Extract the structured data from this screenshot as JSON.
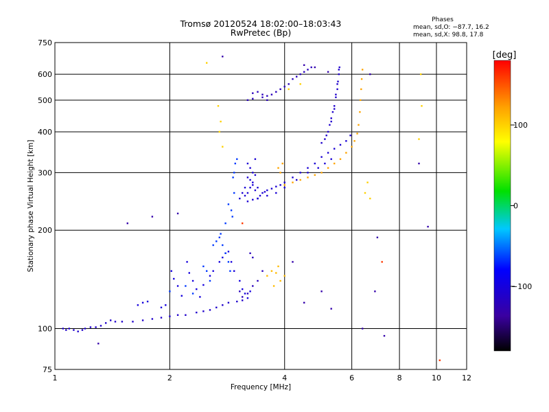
{
  "chart_data": {
    "type": "scatter",
    "title": "Tromsø 20120524 18:02:00–18:03:43",
    "subtitle": "RwPretec (Bp)",
    "xlabel": "Frequency [MHz]",
    "ylabel": "Stationary phase Virtual Height [km]",
    "x_scale": "log",
    "y_scale": "log",
    "xlim": [
      1,
      12
    ],
    "ylim": [
      75,
      750
    ],
    "x_ticks": [
      1,
      2,
      4,
      6,
      8,
      10,
      12
    ],
    "y_ticks": [
      75,
      100,
      200,
      300,
      400,
      500,
      600,
      750
    ],
    "grid": true,
    "phases": {
      "heading": "Phases",
      "line_o": "mean, sd,O: −87.7, 16.2",
      "line_x": "mean, sd,X:  98.8, 17.8"
    },
    "colorbar": {
      "label": "[deg]",
      "range": [
        -180,
        180
      ],
      "ticks": [
        100,
        0,
        -100
      ]
    },
    "series": [
      {
        "phase": -110,
        "points": [
          [
            1.05,
            100
          ],
          [
            1.07,
            99
          ],
          [
            1.09,
            100
          ],
          [
            1.12,
            99
          ],
          [
            1.15,
            98
          ],
          [
            1.18,
            99
          ],
          [
            1.2,
            100
          ],
          [
            1.24,
            101
          ],
          [
            1.28,
            101
          ],
          [
            1.32,
            102
          ],
          [
            1.36,
            104
          ],
          [
            1.4,
            106
          ],
          [
            1.44,
            105
          ],
          [
            1.5,
            105
          ],
          [
            1.6,
            105
          ],
          [
            1.7,
            106
          ],
          [
            1.8,
            107
          ],
          [
            1.9,
            108
          ],
          [
            2.0,
            109
          ],
          [
            2.1,
            110
          ],
          [
            2.2,
            110
          ],
          [
            2.35,
            112
          ],
          [
            2.45,
            113
          ],
          [
            2.55,
            114
          ],
          [
            2.65,
            116
          ],
          [
            2.75,
            118
          ],
          [
            2.85,
            120
          ],
          [
            3.0,
            121
          ],
          [
            3.1,
            122
          ]
        ]
      },
      {
        "phase": -100,
        "points": [
          [
            1.65,
            118
          ],
          [
            1.7,
            120
          ],
          [
            1.75,
            121
          ],
          [
            1.9,
            116
          ],
          [
            1.95,
            118
          ],
          [
            2.02,
            150
          ],
          [
            2.05,
            142
          ],
          [
            2.1,
            135
          ],
          [
            2.15,
            126
          ],
          [
            2.22,
            160
          ],
          [
            2.25,
            148
          ],
          [
            2.3,
            140
          ],
          [
            2.35,
            132
          ],
          [
            2.4,
            125
          ],
          [
            2.45,
            136
          ],
          [
            2.55,
            145
          ],
          [
            2.6,
            150
          ],
          [
            2.7,
            160
          ],
          [
            2.75,
            165
          ],
          [
            2.8,
            170
          ],
          [
            2.85,
            172
          ],
          [
            2.9,
            160
          ],
          [
            2.95,
            150
          ],
          [
            3.05,
            140
          ],
          [
            3.1,
            132
          ],
          [
            3.15,
            128
          ],
          [
            3.2,
            124
          ],
          [
            3.25,
            130
          ]
        ]
      },
      {
        "phase": -65,
        "points": [
          [
            2.0,
            130
          ],
          [
            2.2,
            135
          ],
          [
            2.3,
            128
          ],
          [
            2.45,
            155
          ],
          [
            2.5,
            150
          ],
          [
            2.55,
            140
          ],
          [
            2.6,
            180
          ],
          [
            2.65,
            185
          ],
          [
            2.7,
            190
          ],
          [
            2.72,
            195
          ],
          [
            2.75,
            180
          ],
          [
            2.8,
            170
          ],
          [
            2.85,
            160
          ],
          [
            2.88,
            150
          ],
          [
            2.9,
            230
          ],
          [
            2.92,
            220
          ],
          [
            2.95,
            260
          ],
          [
            2.95,
            300
          ],
          [
            2.97,
            320
          ],
          [
            3.0,
            330
          ],
          [
            2.93,
            290
          ],
          [
            2.85,
            240
          ],
          [
            2.8,
            210
          ]
        ]
      },
      {
        "phase": -105,
        "points": [
          [
            3.15,
            255
          ],
          [
            3.2,
            260
          ],
          [
            3.25,
            270
          ],
          [
            3.3,
            280
          ],
          [
            3.35,
            265
          ],
          [
            3.4,
            250
          ],
          [
            3.45,
            255
          ],
          [
            3.5,
            260
          ],
          [
            3.55,
            262
          ],
          [
            3.6,
            265
          ],
          [
            3.7,
            268
          ],
          [
            3.8,
            272
          ],
          [
            3.9,
            275
          ],
          [
            4.0,
            280
          ],
          [
            4.2,
            290
          ],
          [
            4.4,
            300
          ],
          [
            4.6,
            310
          ],
          [
            4.8,
            320
          ],
          [
            5.0,
            335
          ],
          [
            5.2,
            345
          ],
          [
            5.4,
            355
          ],
          [
            5.6,
            365
          ],
          [
            5.8,
            375
          ],
          [
            5.95,
            390
          ],
          [
            3.2,
            245
          ],
          [
            3.3,
            248
          ],
          [
            3.4,
            250
          ],
          [
            3.6,
            255
          ],
          [
            3.8,
            260
          ],
          [
            4.0,
            270
          ],
          [
            4.3,
            285
          ],
          [
            4.6,
            300
          ],
          [
            4.9,
            310
          ],
          [
            5.1,
            320
          ],
          [
            5.3,
            330
          ]
        ]
      },
      {
        "phase": -110,
        "points": [
          [
            5.0,
            370
          ],
          [
            5.1,
            380
          ],
          [
            5.15,
            390
          ],
          [
            5.2,
            400
          ],
          [
            5.25,
            420
          ],
          [
            5.3,
            440
          ],
          [
            5.35,
            460
          ],
          [
            5.4,
            480
          ],
          [
            5.45,
            510
          ],
          [
            5.5,
            540
          ],
          [
            5.52,
            570
          ],
          [
            5.55,
            600
          ],
          [
            5.57,
            630
          ],
          [
            5.55,
            620
          ],
          [
            5.5,
            560
          ],
          [
            5.45,
            520
          ],
          [
            5.4,
            470
          ],
          [
            5.3,
            430
          ]
        ]
      },
      {
        "phase": -120,
        "points": [
          [
            3.3,
            525
          ],
          [
            3.4,
            530
          ],
          [
            3.5,
            520
          ],
          [
            3.6,
            515
          ],
          [
            3.7,
            520
          ],
          [
            3.8,
            530
          ],
          [
            3.9,
            540
          ],
          [
            4.0,
            550
          ],
          [
            4.1,
            560
          ],
          [
            4.2,
            580
          ],
          [
            4.3,
            590
          ],
          [
            4.4,
            600
          ],
          [
            4.5,
            610
          ],
          [
            4.6,
            620
          ],
          [
            4.7,
            630
          ],
          [
            3.2,
            500
          ],
          [
            3.3,
            505
          ],
          [
            3.5,
            510
          ],
          [
            3.6,
            500
          ]
        ]
      },
      {
        "phase": -105,
        "points": [
          [
            3.15,
            270
          ],
          [
            3.2,
            290
          ],
          [
            3.25,
            285
          ],
          [
            3.3,
            275
          ],
          [
            3.35,
            295
          ],
          [
            3.4,
            270
          ],
          [
            3.1,
            260
          ],
          [
            3.05,
            250
          ],
          [
            3.3,
            300
          ],
          [
            3.25,
            310
          ],
          [
            3.2,
            320
          ],
          [
            3.35,
            330
          ]
        ]
      },
      {
        "phase": 120,
        "points": [
          [
            4.0,
            275
          ],
          [
            4.2,
            280
          ],
          [
            4.4,
            285
          ],
          [
            4.6,
            290
          ],
          [
            4.8,
            295
          ],
          [
            5.0,
            300
          ],
          [
            5.2,
            310
          ],
          [
            5.4,
            320
          ],
          [
            5.6,
            330
          ],
          [
            5.8,
            345
          ],
          [
            6.0,
            360
          ],
          [
            6.1,
            375
          ],
          [
            6.2,
            395
          ],
          [
            6.25,
            420
          ],
          [
            6.3,
            460
          ],
          [
            6.32,
            500
          ],
          [
            6.35,
            540
          ],
          [
            6.37,
            580
          ],
          [
            6.4,
            620
          ],
          [
            3.9,
            300
          ],
          [
            3.85,
            310
          ],
          [
            3.95,
            320
          ]
        ]
      },
      {
        "phase": 110,
        "points": [
          [
            3.6,
            145
          ],
          [
            3.7,
            150
          ],
          [
            3.8,
            148
          ],
          [
            3.9,
            140
          ],
          [
            3.75,
            135
          ],
          [
            3.85,
            155
          ],
          [
            4.0,
            145
          ]
        ]
      },
      {
        "phase": -120,
        "points": [
          [
            3.05,
            130
          ],
          [
            3.1,
            125
          ],
          [
            3.2,
            128
          ],
          [
            3.3,
            135
          ],
          [
            3.4,
            140
          ],
          [
            3.5,
            150
          ],
          [
            3.25,
            170
          ],
          [
            3.3,
            165
          ]
        ]
      },
      {
        "phase": 100,
        "points": [
          [
            2.5,
            650
          ],
          [
            2.68,
            480
          ],
          [
            2.72,
            430
          ],
          [
            2.7,
            400
          ],
          [
            2.75,
            360
          ],
          [
            6.5,
            260
          ],
          [
            6.6,
            280
          ],
          [
            6.7,
            250
          ],
          [
            9.1,
            600
          ],
          [
            9.15,
            480
          ],
          [
            9.0,
            380
          ],
          [
            4.1,
            540
          ],
          [
            4.4,
            560
          ]
        ]
      },
      {
        "phase": -130,
        "points": [
          [
            1.55,
            210
          ],
          [
            1.8,
            220
          ],
          [
            2.1,
            225
          ],
          [
            2.75,
            680
          ],
          [
            4.5,
            640
          ],
          [
            4.8,
            630
          ],
          [
            5.2,
            610
          ],
          [
            6.7,
            600
          ],
          [
            7.0,
            190
          ],
          [
            6.9,
            130
          ],
          [
            5.0,
            130
          ],
          [
            5.3,
            115
          ],
          [
            6.4,
            100
          ],
          [
            7.3,
            95
          ],
          [
            9.0,
            320
          ],
          [
            9.5,
            205
          ],
          [
            1.3,
            90
          ],
          [
            4.2,
            160
          ],
          [
            4.5,
            120
          ]
        ]
      },
      {
        "phase": 160,
        "points": [
          [
            3.1,
            210
          ],
          [
            10.2,
            80
          ],
          [
            7.2,
            160
          ]
        ]
      }
    ]
  }
}
